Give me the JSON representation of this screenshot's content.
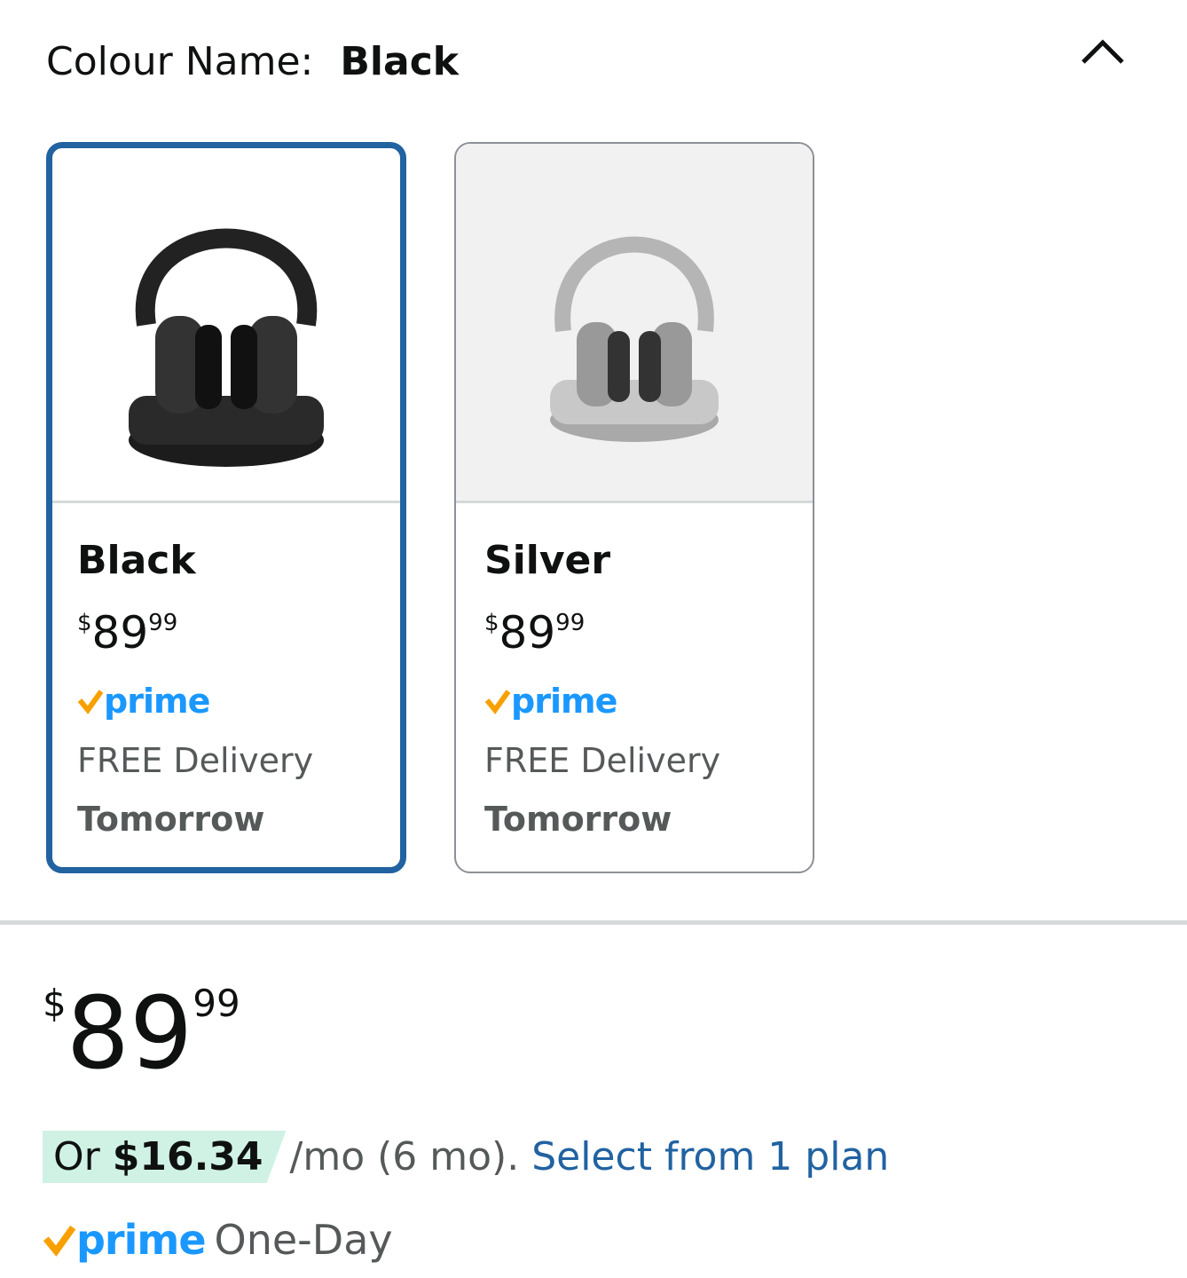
{
  "header": {
    "label": "Colour Name:",
    "selected": "Black",
    "collapse_icon": "chevron-up-icon"
  },
  "options": [
    {
      "name": "Black",
      "price_symbol": "$",
      "price_whole": "89",
      "price_fraction": "99",
      "prime": "prime",
      "delivery": "FREE Delivery",
      "delivery_day": "Tomorrow",
      "selected": true
    },
    {
      "name": "Silver",
      "price_symbol": "$",
      "price_whole": "89",
      "price_fraction": "99",
      "prime": "prime",
      "delivery": "FREE Delivery",
      "delivery_day": "Tomorrow",
      "selected": false
    }
  ],
  "price": {
    "symbol": "$",
    "whole": "89",
    "fraction": "99"
  },
  "financing": {
    "prefix": "Or",
    "amount": "$16.34",
    "terms": "/mo (6 mo).",
    "link": "Select from 1 plan"
  },
  "delivery": {
    "prime": "prime",
    "label": "One-Day"
  },
  "colors": {
    "selected_border": "#2162a1",
    "prime_blue": "#1a98ff",
    "prime_check": "#f7a000",
    "link": "#2162a1",
    "badge_bg": "#cff2e5"
  }
}
